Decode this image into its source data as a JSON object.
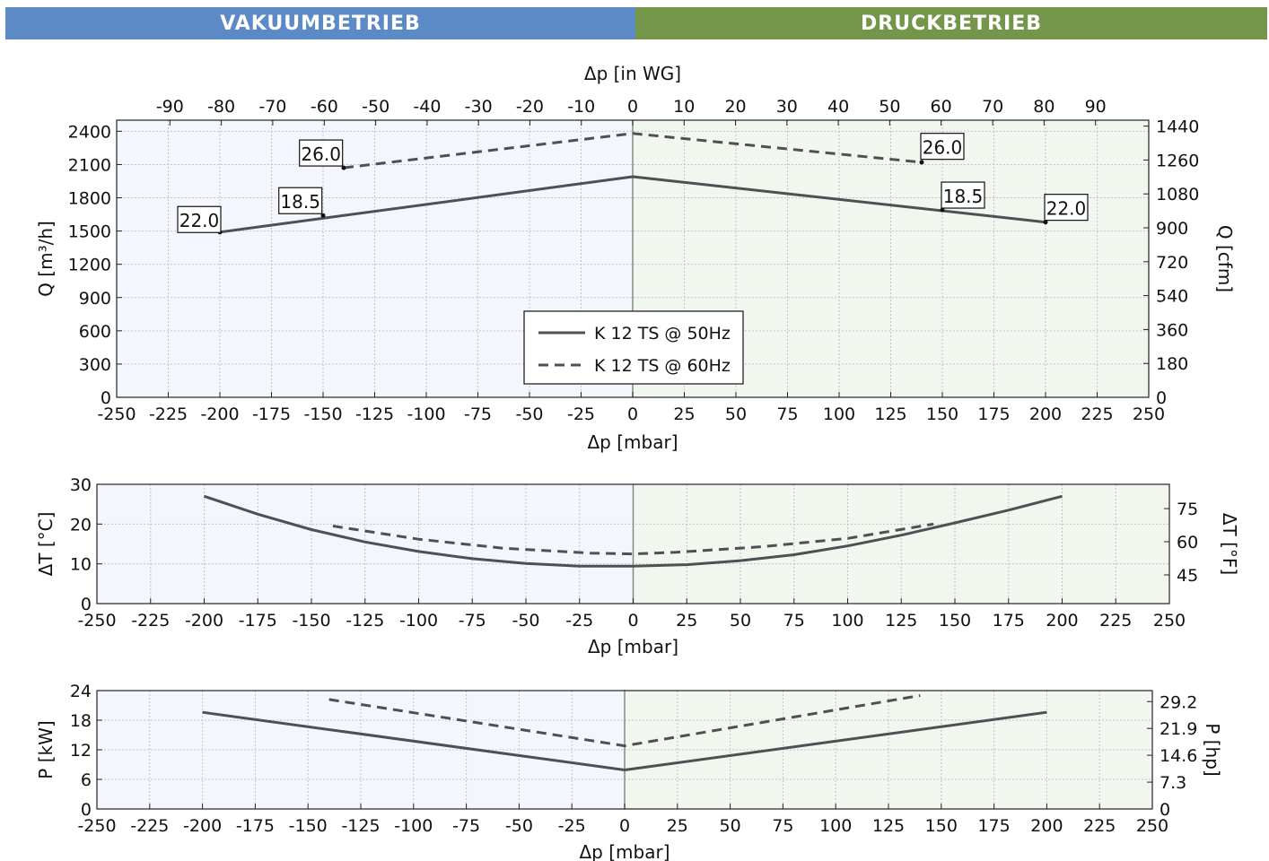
{
  "header": {
    "left_label": "VAKUUMBETRIEB",
    "right_label": "DRUCKBETRIEB",
    "left_color": "#5b8ac7",
    "right_color": "#74964a"
  },
  "colors": {
    "vacuum_bg": "#f3f7fd",
    "pressure_bg": "#f1f6ee",
    "line": "#4d5154",
    "grid": "#bcc4cc"
  },
  "chart_data": [
    {
      "type": "line",
      "id": "flow",
      "xlabel": "Δp [mbar]",
      "xlabel_top": "Δp [in WG]",
      "ylabel": "Q [m³/h]",
      "ylabel_right": "Q [cfm]",
      "xlim": [
        -250,
        250
      ],
      "ylim": [
        0,
        2500
      ],
      "xticks": [
        -250,
        -225,
        -200,
        -175,
        -150,
        -125,
        -100,
        -75,
        -50,
        -25,
        0,
        25,
        50,
        75,
        100,
        125,
        150,
        175,
        200,
        225,
        250
      ],
      "yticks": [
        0,
        300,
        600,
        900,
        1200,
        1500,
        1800,
        2100,
        2400
      ],
      "xticks_top": [
        {
          "label": "-90",
          "x": -224.2
        },
        {
          "label": "-80",
          "x": -199.3
        },
        {
          "label": "-70",
          "x": -174.4
        },
        {
          "label": "-60",
          "x": -149.4
        },
        {
          "label": "-50",
          "x": -124.5
        },
        {
          "label": "-40",
          "x": -99.6
        },
        {
          "label": "-30",
          "x": -74.7
        },
        {
          "label": "-20",
          "x": -49.8
        },
        {
          "label": "-10",
          "x": -24.9
        },
        {
          "label": "0",
          "x": 0
        },
        {
          "label": "10",
          "x": 24.9
        },
        {
          "label": "20",
          "x": 49.8
        },
        {
          "label": "30",
          "x": 74.7
        },
        {
          "label": "40",
          "x": 99.6
        },
        {
          "label": "50",
          "x": 124.5
        },
        {
          "label": "60",
          "x": 149.4
        },
        {
          "label": "70",
          "x": 174.4
        },
        {
          "label": "80",
          "x": 199.3
        },
        {
          "label": "90",
          "x": 224.2
        }
      ],
      "yticks_right": [
        {
          "label": "0",
          "y": 0
        },
        {
          "label": "180",
          "y": 305.8
        },
        {
          "label": "360",
          "y": 611.6
        },
        {
          "label": "540",
          "y": 917.5
        },
        {
          "label": "720",
          "y": 1223.3
        },
        {
          "label": "900",
          "y": 1529.1
        },
        {
          "label": "1080",
          "y": 1834.9
        },
        {
          "label": "1260",
          "y": 2140.8
        },
        {
          "label": "1440",
          "y": 2446.6
        }
      ],
      "series": [
        {
          "name": "K 12 TS @ 50Hz",
          "dash": false,
          "x": [
            -200,
            0,
            200
          ],
          "y": [
            1490,
            1990,
            1580
          ]
        },
        {
          "name": "K 12 TS @ 60Hz",
          "dash": true,
          "x": [
            -140,
            0,
            140
          ],
          "y": [
            2070,
            2380,
            2120
          ]
        }
      ],
      "annotations": [
        {
          "text": "22.0",
          "x": -200,
          "y": 1490,
          "lx": -210,
          "ly": 1600
        },
        {
          "text": "18.5",
          "x": -150,
          "y": 1640,
          "lx": -161,
          "ly": 1770
        },
        {
          "text": "26.0",
          "x": -140,
          "y": 2070,
          "lx": -151,
          "ly": 2200
        },
        {
          "text": "26.0",
          "x": 140,
          "y": 2120,
          "lx": 150,
          "ly": 2260
        },
        {
          "text": "18.5",
          "x": 150,
          "y": 1690,
          "lx": 160,
          "ly": 1820
        },
        {
          "text": "22.0",
          "x": 200,
          "y": 1580,
          "lx": 210,
          "ly": 1710
        }
      ],
      "legend": {
        "position": "bottom-center",
        "entries": [
          "K 12 TS @ 50Hz",
          "K 12 TS @ 60Hz"
        ]
      },
      "grid": true
    },
    {
      "type": "line",
      "id": "temperature",
      "xlabel": "Δp [mbar]",
      "ylabel": "ΔT [°C]",
      "ylabel_right": "ΔT [°F]",
      "xlim": [
        -250,
        250
      ],
      "ylim": [
        0,
        30
      ],
      "xticks": [
        -250,
        -225,
        -200,
        -175,
        -150,
        -125,
        -100,
        -75,
        -50,
        -25,
        0,
        25,
        50,
        75,
        100,
        125,
        150,
        175,
        200,
        225,
        250
      ],
      "yticks": [
        0,
        10,
        20,
        30
      ],
      "yticks_right": [
        {
          "label": "45",
          "y": 7.22
        },
        {
          "label": "60",
          "y": 15.56
        },
        {
          "label": "75",
          "y": 23.89
        }
      ],
      "series": [
        {
          "name": "K 12 TS @ 50Hz",
          "dash": false,
          "x": [
            -200,
            -175,
            -150,
            -125,
            -100,
            -75,
            -50,
            -25,
            0,
            25,
            50,
            75,
            100,
            125,
            150,
            175,
            200
          ],
          "y": [
            27,
            22.5,
            18.6,
            15.5,
            13.1,
            11.3,
            10.1,
            9.4,
            9.4,
            9.8,
            10.8,
            12.3,
            14.5,
            17.2,
            20.3,
            23.5,
            27
          ]
        },
        {
          "name": "K 12 TS @ 60Hz",
          "dash": true,
          "x": [
            -140,
            -100,
            -60,
            -20,
            0,
            20,
            60,
            100,
            140
          ],
          "y": [
            19.5,
            16.2,
            13.9,
            12.7,
            12.5,
            12.9,
            14.3,
            16.4,
            20
          ]
        }
      ],
      "grid": true
    },
    {
      "type": "line",
      "id": "power",
      "xlabel": "Δp [mbar]",
      "ylabel": "P [kW]",
      "ylabel_right": "P [hp]",
      "xlim": [
        -250,
        250
      ],
      "ylim": [
        0,
        24
      ],
      "xticks": [
        -250,
        -225,
        -200,
        -175,
        -150,
        -125,
        -100,
        -75,
        -50,
        -25,
        0,
        25,
        50,
        75,
        100,
        125,
        150,
        175,
        200,
        225,
        250
      ],
      "yticks": [
        0,
        6,
        12,
        18,
        24
      ],
      "yticks_right": [
        {
          "label": "0",
          "y": 0
        },
        {
          "label": "7.3",
          "y": 5.44
        },
        {
          "label": "14.6",
          "y": 10.89
        },
        {
          "label": "21.9",
          "y": 16.33
        },
        {
          "label": "29.2",
          "y": 21.77
        }
      ],
      "series": [
        {
          "name": "K 12 TS @ 50Hz",
          "dash": false,
          "x": [
            -200,
            0,
            200
          ],
          "y": [
            19.6,
            7.9,
            19.6
          ]
        },
        {
          "name": "K 12 TS @ 60Hz",
          "dash": true,
          "x": [
            -140,
            0,
            140
          ],
          "y": [
            22.2,
            12.8,
            23
          ]
        }
      ],
      "grid": true
    }
  ]
}
